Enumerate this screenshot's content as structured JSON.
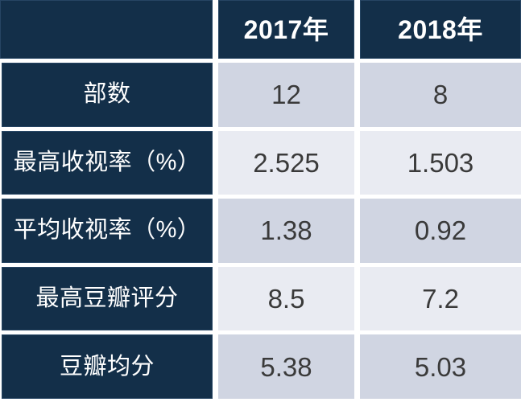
{
  "table": {
    "columns": [
      "",
      "2017年",
      "2018年"
    ],
    "rows": [
      {
        "label": "部数",
        "values": [
          "12",
          "8"
        ]
      },
      {
        "label": "最高收视率（%）",
        "values": [
          "2.525",
          "1.503"
        ]
      },
      {
        "label": "平均收视率（%）",
        "values": [
          "1.38",
          "0.92"
        ]
      },
      {
        "label": "最高豆瓣评分",
        "values": [
          "8.5",
          "7.2"
        ]
      },
      {
        "label": "豆瓣均分",
        "values": [
          "5.38",
          "5.03"
        ]
      }
    ],
    "colors": {
      "header_bg": "#132f49",
      "band_a_bg": "#d0d5e2",
      "band_b_bg": "#e9ebf2",
      "header_text": "#ffffff",
      "value_text": "#3a3a3a",
      "gap": "#ffffff"
    }
  },
  "chart_data": {
    "type": "table",
    "columns": [
      "",
      "2017年",
      "2018年"
    ],
    "rows": [
      [
        "部数",
        12,
        8
      ],
      [
        "最高收视率（%）",
        2.525,
        1.503
      ],
      [
        "平均收视率（%）",
        1.38,
        0.92
      ],
      [
        "最高豆瓣评分",
        8.5,
        7.2
      ],
      [
        "豆瓣均分",
        5.38,
        5.03
      ]
    ]
  }
}
